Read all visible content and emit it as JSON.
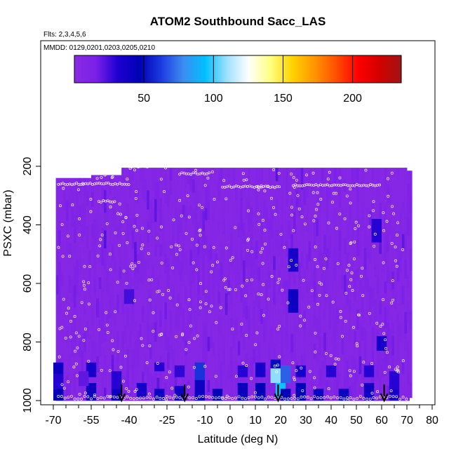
{
  "chart_data": {
    "type": "heatmap",
    "title": "ATOM2 Southbound Sacc_LAS",
    "flights_label": "Flts: 2,3,4,5,6",
    "dates_label": "MMDD: 0129,0201,0203,0205,0210",
    "xlabel": "Latitude (deg N)",
    "ylabel": "PSXC (mbar)",
    "xlim": [
      -70,
      85
    ],
    "ylim": [
      1000,
      150
    ],
    "y_reversed": true,
    "x_ticks": [
      -70,
      -55,
      -40,
      -25,
      -10,
      0,
      10,
      20,
      30,
      40,
      50,
      60,
      70,
      80
    ],
    "x_tick_labels": [
      "-70",
      "-55",
      "-40",
      "-25",
      "-10",
      "0",
      "10",
      "20",
      "30",
      "40",
      "50",
      "60",
      "70",
      "80"
    ],
    "x_minor_ticks": [
      -65,
      -60,
      -50,
      -45,
      -35,
      -30,
      -20,
      -15,
      -5,
      5,
      15,
      25,
      35,
      45,
      55,
      65,
      75,
      85
    ],
    "y_ticks": [
      200,
      400,
      600,
      800,
      1000
    ],
    "y_tick_labels": [
      "200",
      "400",
      "600",
      "800",
      "1000"
    ],
    "colorbar": {
      "range": [
        0,
        235
      ],
      "ticks": [
        50,
        100,
        150,
        200
      ],
      "tick_labels": [
        "50",
        "100",
        "150",
        "200"
      ],
      "colors": [
        "#8a2be2",
        "#7a1fe8",
        "#1e00d0",
        "#0000b4",
        "#1e3ce0",
        "#3c8cf0",
        "#00c0ff",
        "#a0e0ff",
        "#ffffff",
        "#ffff80",
        "#ffd200",
        "#ff9600",
        "#ff5000",
        "#ff0000",
        "#d20000",
        "#a01414"
      ]
    },
    "background_value": 5,
    "grid": false,
    "cells": [
      [
        -68,
        870,
        910,
        40
      ],
      [
        -68,
        910,
        960,
        30
      ],
      [
        -68,
        960,
        1000,
        45
      ],
      [
        -55,
        870,
        920,
        35
      ],
      [
        -55,
        940,
        1000,
        40
      ],
      [
        -45,
        900,
        960,
        30
      ],
      [
        -45,
        960,
        1000,
        40
      ],
      [
        -35,
        940,
        990,
        35
      ],
      [
        -28,
        870,
        900,
        30
      ],
      [
        -28,
        960,
        1000,
        40
      ],
      [
        -20,
        880,
        920,
        28
      ],
      [
        -20,
        950,
        1000,
        38
      ],
      [
        -12,
        870,
        930,
        60
      ],
      [
        -12,
        930,
        1000,
        40
      ],
      [
        -5,
        960,
        1000,
        45
      ],
      [
        5,
        880,
        920,
        30
      ],
      [
        5,
        940,
        1000,
        42
      ],
      [
        12,
        870,
        920,
        35
      ],
      [
        12,
        940,
        1000,
        45
      ],
      [
        18,
        860,
        890,
        50
      ],
      [
        18,
        890,
        940,
        108
      ],
      [
        20,
        940,
        990,
        95
      ],
      [
        22,
        880,
        940,
        70
      ],
      [
        22,
        960,
        1000,
        45
      ],
      [
        25,
        480,
        560,
        35
      ],
      [
        25,
        620,
        700,
        40
      ],
      [
        28,
        880,
        920,
        35
      ],
      [
        28,
        940,
        1000,
        45
      ],
      [
        35,
        960,
        1000,
        40
      ],
      [
        40,
        880,
        920,
        30
      ],
      [
        45,
        960,
        1000,
        40
      ],
      [
        55,
        880,
        920,
        30
      ],
      [
        55,
        940,
        1000,
        38
      ],
      [
        58,
        380,
        460,
        30
      ],
      [
        60,
        780,
        830,
        35
      ],
      [
        65,
        900,
        960,
        30
      ],
      [
        65,
        960,
        1000,
        35
      ],
      [
        -40,
        620,
        670,
        25
      ],
      [
        -58,
        900,
        950,
        20
      ]
    ],
    "profile_arrows": [
      -43,
      -18,
      19,
      61
    ],
    "data_labels": []
  }
}
